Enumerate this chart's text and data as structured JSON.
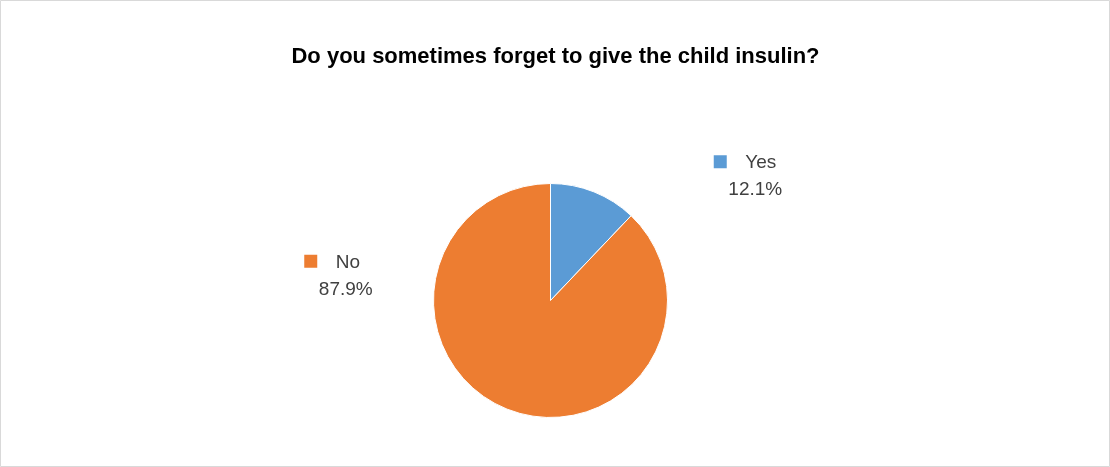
{
  "chart_data": {
    "type": "pie",
    "title": "Do you sometimes forget to give the child insulin?",
    "categories": [
      "Yes",
      "No"
    ],
    "values": [
      12.1,
      87.9
    ],
    "value_labels": [
      "12.1%",
      "87.9%"
    ],
    "colors": [
      "#5b9bd5",
      "#ed7d31"
    ],
    "legend": "right"
  }
}
